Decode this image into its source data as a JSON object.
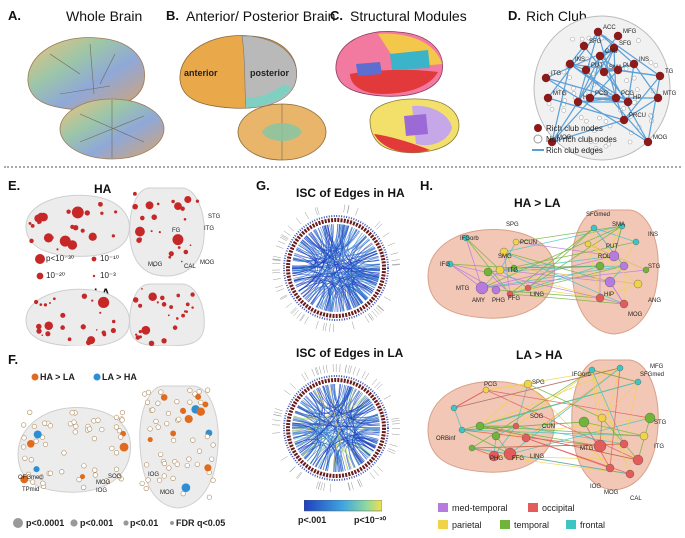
{
  "panels": {
    "A": {
      "letter": "A.",
      "title": "Whole Brain"
    },
    "B": {
      "letter": "B.",
      "title": "Anterior/ Posterior Brain",
      "labels": [
        "anterior",
        "posterior"
      ]
    },
    "C": {
      "letter": "C.",
      "title": "Structural Modules"
    },
    "D": {
      "letter": "D.",
      "title": "Rich Club",
      "regions": [
        "ACC",
        "MFG",
        "SFG",
        "SFG",
        "CAU",
        "INS",
        "PUT",
        "SMA",
        "PUT",
        "INS",
        "ITG",
        "TG",
        "MTG",
        "HP",
        "PCG",
        "PCG",
        "HP",
        "MTG",
        "PRCU",
        "MOG",
        "MOG"
      ],
      "legend": [
        "Rich club nodes",
        "Non rich club nodes",
        "Rich club edges"
      ]
    },
    "E": {
      "letter": "E.",
      "sub_ha": "HA",
      "sub_la": "LA",
      "pvalues": [
        "p<10⁻³⁰",
        "10⁻¹⁰",
        "10⁻²⁰",
        "10⁻³"
      ],
      "regions": [
        "STG",
        "ITG",
        "FG",
        "MOG",
        "CAL",
        "MOG"
      ]
    },
    "F": {
      "letter": "F.",
      "legend": [
        "HA > LA",
        "LA > HA"
      ],
      "thresholds": [
        "p<0.0001",
        "p<0.001",
        "p<0.01",
        "FDR q<0.05"
      ],
      "regions": [
        "OFGmed",
        "TPmid",
        "SOG",
        "MOG",
        "IOG",
        "MOG",
        "IOG"
      ]
    },
    "G": {
      "letter": "G.",
      "title_ha": "ISC of Edges in HA",
      "title_la": "ISC of Edges in LA",
      "colorbar": [
        "p<.001",
        "p<10⁻³⁰"
      ]
    },
    "H": {
      "letter": "H.",
      "sub_1": "HA > LA",
      "sub_2": "LA > HA",
      "regions_1": [
        "SPG",
        "IFG",
        "SMG",
        "MTG",
        "ITG",
        "AMY",
        "PHG",
        "FFG",
        "LING",
        "INS",
        "ROL",
        "PUT",
        "HIP",
        "ANG",
        "STG",
        "MOG",
        "SFGmed",
        "SMA",
        "IFGorb",
        "PCUN"
      ],
      "regions_2": [
        "PCG",
        "SPG",
        "MFG",
        "IFGorb",
        "SFGmed",
        "SOG",
        "CUN",
        "MTG",
        "STG",
        "ITG",
        "IOG",
        "MOG",
        "CAL",
        "LING",
        "FFG",
        "ORBinf",
        "PHG"
      ],
      "legend": [
        "med-temporal",
        "occipital",
        "parietal",
        "temporal",
        "frontal"
      ]
    }
  },
  "colors": {
    "node_red": "#c62828",
    "node_dark": "#8b1a1a",
    "edge_blue": "#5aa0d8",
    "ha_orange": "#e06b1e",
    "la_blue": "#2b8fd6",
    "med_temporal": "#b77be0",
    "occipital": "#e35b5b",
    "parietal": "#f1d34a",
    "temporal": "#6fb53a",
    "frontal": "#3fc4c4"
  }
}
